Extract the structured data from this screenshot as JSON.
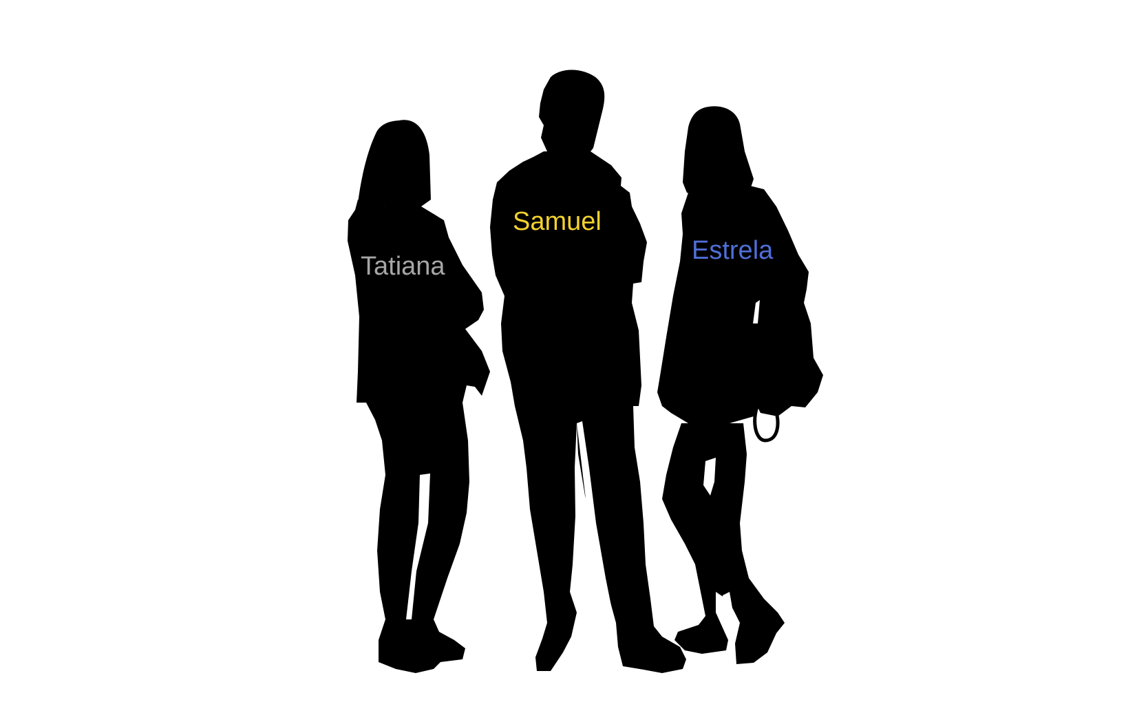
{
  "people": [
    {
      "id": "tatiana",
      "name": "Tatiana",
      "color": "#a6a6a6"
    },
    {
      "id": "samuel",
      "name": "Samuel",
      "color": "#f2d22e"
    },
    {
      "id": "estrela",
      "name": "Estrela",
      "color": "#4f6fd8"
    }
  ],
  "silhouette_color": "#000000",
  "background_color": "#ffffff"
}
